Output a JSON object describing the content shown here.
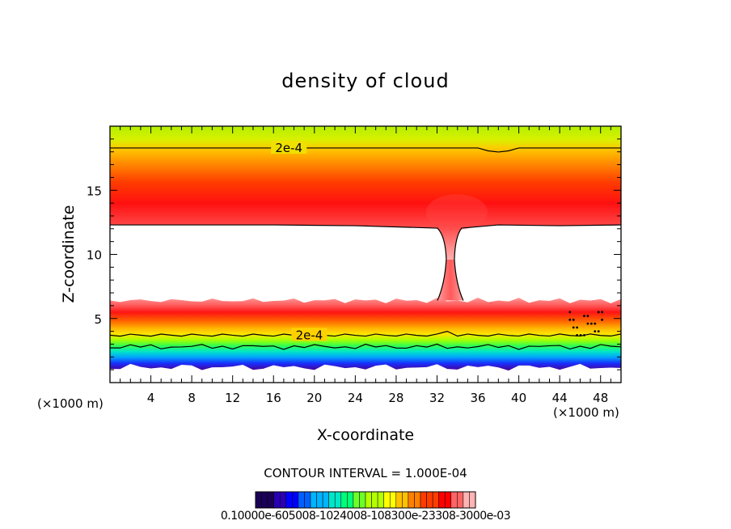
{
  "chart_data": {
    "type": "heatmap",
    "title": "density of cloud",
    "xlabel": "X-coordinate",
    "ylabel": "Z-coordinate",
    "x_unit": "(×1000 m)",
    "z_unit": "(×1000 m)",
    "xlim": [
      0,
      50
    ],
    "ylim": [
      0,
      20
    ],
    "x_ticks": [
      4,
      8,
      12,
      16,
      20,
      24,
      28,
      32,
      36,
      40,
      44,
      48
    ],
    "y_ticks": [
      5,
      10,
      15
    ],
    "contour_interval_label": "CONTOUR INTERVAL = 1.000E-04",
    "contour_labels": [
      {
        "text": "2e-4",
        "x": 17.5,
        "y": 18.3
      },
      {
        "text": "2e-4",
        "x": 19.5,
        "y": 3.7
      }
    ],
    "colorbar": {
      "min": 1e-07,
      "max": 0.003,
      "tick_text": "0.10000e-605008-1024008-108300e-23308-3000e-03",
      "colors": [
        "#1a0057",
        "#2a00b4",
        "#0000ff",
        "#0060ff",
        "#00b4ff",
        "#00e6c8",
        "#00ff78",
        "#6cff28",
        "#b4ff00",
        "#ffff00",
        "#ffc000",
        "#ff8000",
        "#ff3c00",
        "#ff0000",
        "#ff6464",
        "#ffb4b4"
      ]
    },
    "upper_layer": {
      "peak_z": 14.8,
      "bottom_z": 12.3,
      "top_z": 19.8,
      "contour_2e4_z": 18.3
    },
    "lower_layer": {
      "top_z": 6.4,
      "peak_z": 5.4,
      "bottom_z": 1.2,
      "contour_2e4_z": 3.7
    },
    "column": {
      "x_center": 33.3,
      "bottom_z": 6.4,
      "top_z": 12.3
    }
  }
}
